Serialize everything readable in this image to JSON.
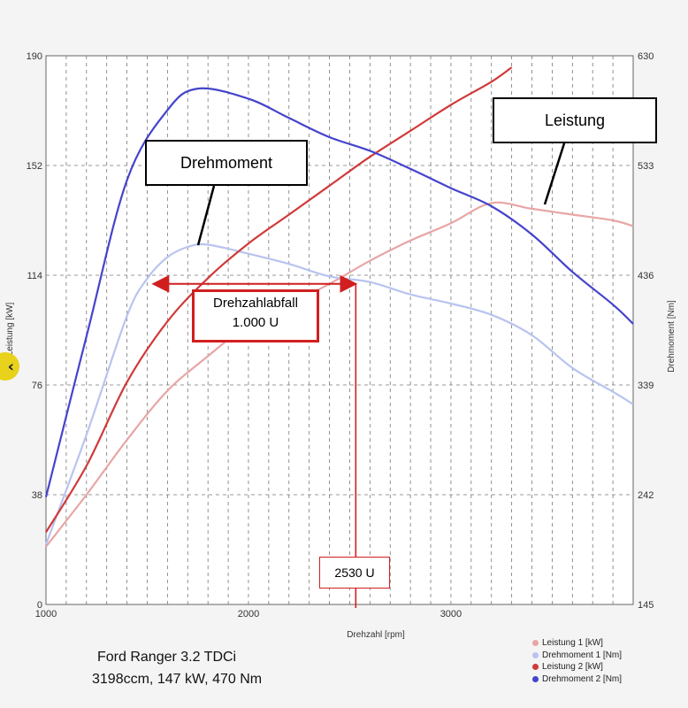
{
  "chart_data": {
    "type": "line",
    "xlabel": "Drehzahl [rpm]",
    "ylabel_left": "Leistung [kW]",
    "ylabel_right": "Drehmoment [Nm]",
    "xlim": [
      1000,
      3900
    ],
    "ylim_left": [
      0,
      190
    ],
    "ylim_right": [
      145,
      630
    ],
    "x_ticks": [
      "1000",
      "2000",
      "3000"
    ],
    "y_left_ticks": [
      "0",
      "38",
      "76",
      "114",
      "152",
      "190"
    ],
    "y_right_ticks": [
      "145",
      "242",
      "339",
      "436",
      "533",
      "630"
    ],
    "y_left_tick_values": [
      0,
      38,
      76,
      114,
      152,
      190
    ],
    "y_right_tick_values": [
      145,
      242,
      339,
      436,
      533,
      630
    ],
    "grid": true,
    "series": [
      {
        "name": "Leistung 1 [kW]",
        "axis": "left",
        "color": "#e8a5a5",
        "points": [
          [
            1000,
            20
          ],
          [
            1200,
            38
          ],
          [
            1400,
            57
          ],
          [
            1600,
            74
          ],
          [
            1800,
            86
          ],
          [
            2000,
            97
          ],
          [
            2200,
            104
          ],
          [
            2400,
            111
          ],
          [
            2600,
            119
          ],
          [
            2800,
            126
          ],
          [
            3000,
            132
          ],
          [
            3200,
            139
          ],
          [
            3400,
            137
          ],
          [
            3600,
            135
          ],
          [
            3800,
            133
          ],
          [
            3900,
            131
          ]
        ]
      },
      {
        "name": "Drehmoment 1 [Nm]",
        "axis": "right",
        "color": "#b8c4f0",
        "points": [
          [
            1000,
            198
          ],
          [
            1200,
            295
          ],
          [
            1400,
            400
          ],
          [
            1500,
            433
          ],
          [
            1600,
            452
          ],
          [
            1700,
            461
          ],
          [
            1800,
            463
          ],
          [
            2000,
            455
          ],
          [
            2200,
            446
          ],
          [
            2400,
            435
          ],
          [
            2600,
            430
          ],
          [
            2800,
            419
          ],
          [
            3000,
            411
          ],
          [
            3200,
            401
          ],
          [
            3400,
            383
          ],
          [
            3600,
            354
          ],
          [
            3800,
            333
          ],
          [
            3900,
            322
          ]
        ]
      },
      {
        "name": "Leistung 2 [kW]",
        "axis": "left",
        "color": "#d03a3a",
        "points": [
          [
            1000,
            25
          ],
          [
            1200,
            48
          ],
          [
            1400,
            77
          ],
          [
            1600,
            98
          ],
          [
            1800,
            113
          ],
          [
            2000,
            125
          ],
          [
            2200,
            135
          ],
          [
            2400,
            145
          ],
          [
            2600,
            155
          ],
          [
            2800,
            164
          ],
          [
            3000,
            173
          ],
          [
            3200,
            181
          ],
          [
            3300,
            186
          ]
        ]
      },
      {
        "name": "Drehmoment 2 [Nm]",
        "axis": "right",
        "color": "#4444cc",
        "points": [
          [
            1000,
            240
          ],
          [
            1200,
            382
          ],
          [
            1400,
            520
          ],
          [
            1600,
            582
          ],
          [
            1750,
            601
          ],
          [
            2000,
            592
          ],
          [
            2200,
            575
          ],
          [
            2400,
            558
          ],
          [
            2600,
            546
          ],
          [
            2800,
            530
          ],
          [
            3000,
            513
          ],
          [
            3200,
            497
          ],
          [
            3400,
            472
          ],
          [
            3600,
            439
          ],
          [
            3800,
            410
          ],
          [
            3900,
            393
          ]
        ]
      }
    ],
    "annotations": {
      "drehmoment_label": "Drehmoment",
      "leistung_label": "Leistung",
      "drehzahlabfall_line1": "Drehzahlabfall",
      "drehzahlabfall_line2": "1.000 U",
      "rpm_marker": "2530 U"
    },
    "marker_rpm": 2530,
    "arrow_from_rpm": 1530,
    "arrow_to_rpm": 2530,
    "arrow_level_kw": 111,
    "legend_position": "bottom-right"
  },
  "caption": {
    "line1": "Ford Ranger 3.2 TDCi",
    "line2": "3198ccm, 147 kW, 470 Nm"
  },
  "nav_icon": "chevron-left-icon"
}
